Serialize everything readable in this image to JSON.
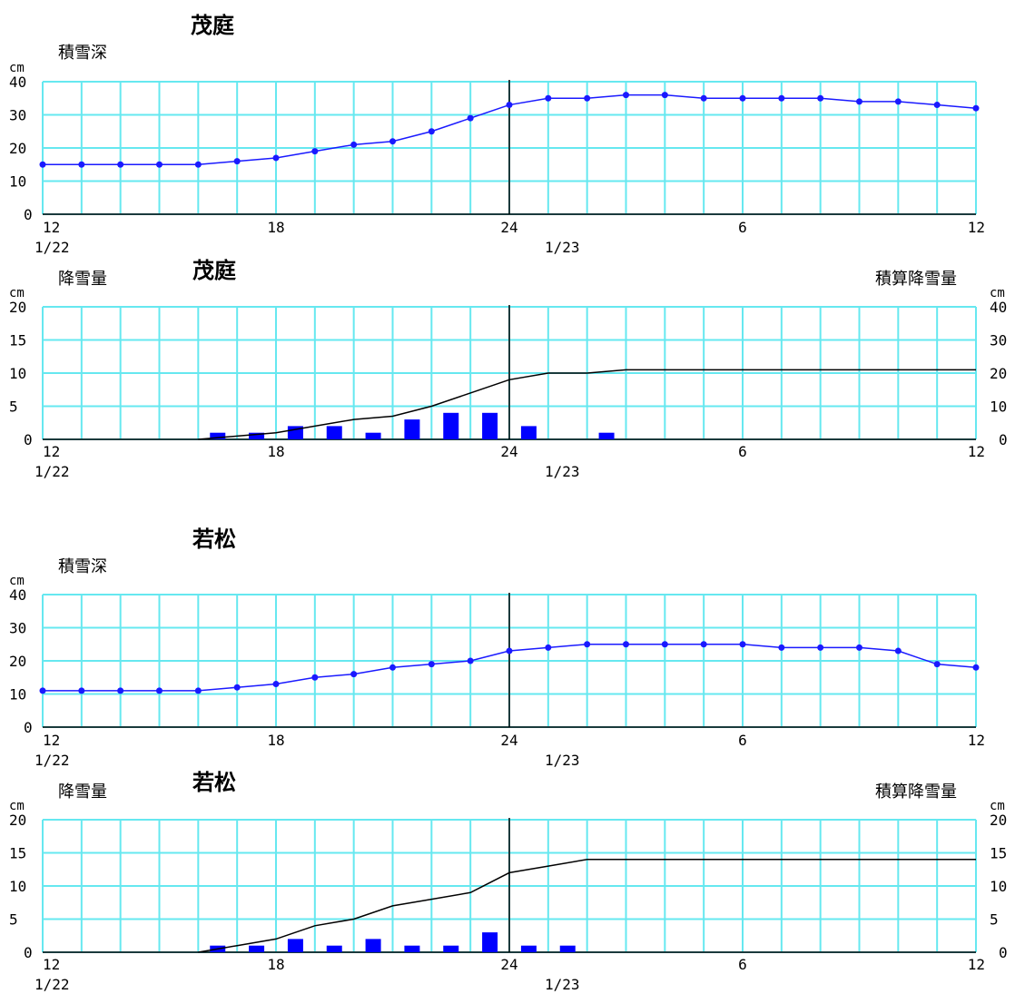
{
  "x_ticks": [
    "12",
    "18",
    "24",
    "6",
    "12"
  ],
  "date_labels": [
    "1/22",
    "1/23"
  ],
  "unit": "cm",
  "colors": {
    "grid": "#66e8f0",
    "line": "#1a1aff",
    "bar": "#0000ff",
    "cumulative": "#000000",
    "day_divider": "#000000"
  },
  "chart_data": [
    {
      "type": "line",
      "station": "茂庭",
      "label": "積雪深",
      "unit": "cm",
      "x": [
        12,
        13,
        14,
        15,
        16,
        17,
        18,
        19,
        20,
        21,
        22,
        23,
        24,
        25,
        26,
        27,
        28,
        29,
        30,
        31,
        32,
        33,
        34,
        35,
        36
      ],
      "values": [
        15,
        15,
        15,
        15,
        15,
        16,
        17,
        19,
        21,
        22,
        25,
        29,
        33,
        35,
        35,
        36,
        36,
        35,
        35,
        35,
        35,
        34,
        34,
        33,
        32
      ],
      "ylim": [
        0,
        40
      ],
      "y_ticks": [
        "40",
        "30",
        "20",
        "10",
        "0"
      ]
    },
    {
      "type": "bar",
      "station": "茂庭",
      "label": "降雪量",
      "right_label": "積算降雪量",
      "unit": "cm",
      "x": [
        12,
        13,
        14,
        15,
        16,
        17,
        18,
        19,
        20,
        21,
        22,
        23,
        24,
        25,
        26,
        27,
        28,
        29,
        30,
        31,
        32,
        33,
        34,
        35,
        36
      ],
      "values": [
        0,
        0,
        0,
        0,
        0,
        1,
        1,
        2,
        2,
        1,
        3,
        4,
        4,
        2,
        0,
        1,
        0,
        0,
        0,
        0,
        0,
        0,
        0,
        0,
        0
      ],
      "cumulative": [
        null,
        null,
        null,
        null,
        0,
        1,
        2,
        4,
        6,
        7,
        10,
        14,
        18,
        20,
        20,
        21,
        21,
        21,
        21,
        21,
        21,
        21,
        21,
        21,
        21
      ],
      "ylim": [
        0,
        20
      ],
      "y2lim": [
        0,
        40
      ],
      "y_ticks": [
        "20",
        "15",
        "10",
        "5",
        "0"
      ],
      "y2_ticks": [
        "40",
        "30",
        "20",
        "10",
        "0"
      ]
    },
    {
      "type": "line",
      "station": "若松",
      "label": "積雪深",
      "unit": "cm",
      "x": [
        12,
        13,
        14,
        15,
        16,
        17,
        18,
        19,
        20,
        21,
        22,
        23,
        24,
        25,
        26,
        27,
        28,
        29,
        30,
        31,
        32,
        33,
        34,
        35,
        36
      ],
      "values": [
        11,
        11,
        11,
        11,
        11,
        12,
        13,
        15,
        16,
        18,
        19,
        20,
        23,
        24,
        25,
        25,
        25,
        25,
        25,
        24,
        24,
        24,
        23,
        19,
        18
      ],
      "ylim": [
        0,
        40
      ],
      "y_ticks": [
        "40",
        "30",
        "20",
        "10",
        "0"
      ]
    },
    {
      "type": "bar",
      "station": "若松",
      "label": "降雪量",
      "right_label": "積算降雪量",
      "unit": "cm",
      "x": [
        12,
        13,
        14,
        15,
        16,
        17,
        18,
        19,
        20,
        21,
        22,
        23,
        24,
        25,
        26,
        27,
        28,
        29,
        30,
        31,
        32,
        33,
        34,
        35,
        36
      ],
      "values": [
        0,
        0,
        0,
        0,
        0,
        1,
        1,
        2,
        1,
        2,
        1,
        1,
        3,
        1,
        1,
        0,
        0,
        0,
        0,
        0,
        0,
        0,
        0,
        0,
        0
      ],
      "cumulative": [
        null,
        null,
        null,
        null,
        0,
        1,
        2,
        4,
        5,
        7,
        8,
        9,
        12,
        13,
        14,
        14,
        14,
        14,
        14,
        14,
        14,
        14,
        14,
        14,
        14
      ],
      "ylim": [
        0,
        20
      ],
      "y2lim": [
        0,
        20
      ],
      "y_ticks": [
        "20",
        "15",
        "10",
        "5",
        "0"
      ],
      "y2_ticks": [
        "20",
        "15",
        "10",
        "5",
        "0"
      ]
    }
  ]
}
